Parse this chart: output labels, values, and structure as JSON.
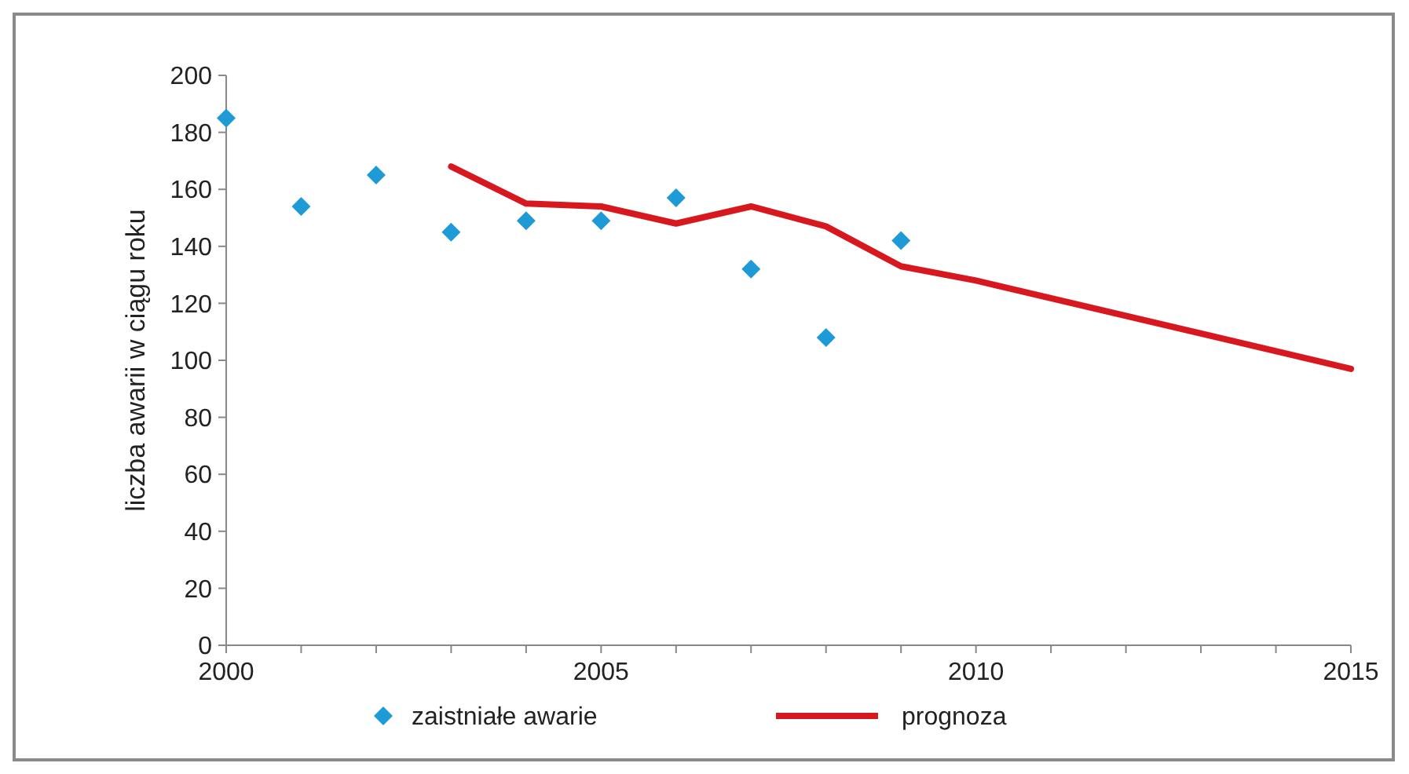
{
  "chart_data": {
    "type": "line",
    "ylabel": "liczba awarii w ciągu roku",
    "xlim": [
      2000,
      2015
    ],
    "ylim": [
      0,
      200
    ],
    "xticks": [
      2000,
      {
        "value": 2001,
        "label": null
      },
      {
        "value": 2002,
        "label": null
      },
      {
        "value": 2003,
        "label": null
      },
      {
        "value": 2004,
        "label": null
      },
      2005,
      {
        "value": 2006,
        "label": null
      },
      {
        "value": 2007,
        "label": null
      },
      {
        "value": 2008,
        "label": null
      },
      {
        "value": 2009,
        "label": null
      },
      2010,
      {
        "value": 2011,
        "label": null
      },
      {
        "value": 2012,
        "label": null
      },
      {
        "value": 2013,
        "label": null
      },
      {
        "value": 2014,
        "label": null
      },
      2015
    ],
    "yticks": [
      0,
      20,
      40,
      60,
      80,
      100,
      120,
      140,
      160,
      180,
      200
    ],
    "grid": false,
    "legend": "bottom",
    "series": [
      {
        "name": "zaistniałe awarie",
        "type": "scatter",
        "marker": "diamond",
        "color": "#1e9ad6",
        "x": [
          2000,
          2001,
          2002,
          2003,
          2004,
          2005,
          2006,
          2007,
          2008,
          2009
        ],
        "values": [
          185,
          154,
          165,
          145,
          149,
          149,
          157,
          132,
          108,
          142
        ]
      },
      {
        "name": "prognoza",
        "marker": "none",
        "line_style": "solid",
        "color": "#d7191f",
        "x": [
          2003,
          2004,
          2005,
          2006,
          2007,
          2008,
          2009,
          2010,
          2015
        ],
        "values": [
          168,
          155,
          154,
          148,
          154,
          147,
          133,
          128,
          97
        ]
      }
    ]
  }
}
